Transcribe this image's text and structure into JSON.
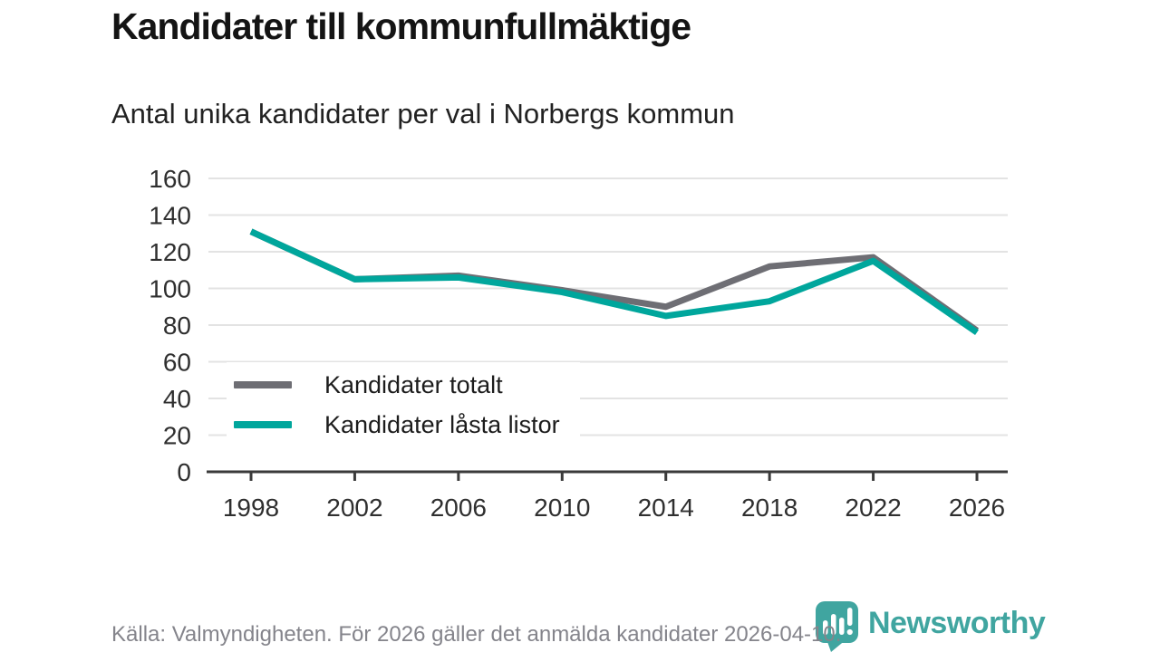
{
  "page": {
    "title": "Kandidater till kommunfullmäktige",
    "subtitle": "Antal unika kandidater per val i Norbergs kommun"
  },
  "footer": {
    "source_note": "Källa: Valmyndigheten. För 2026 gäller det anmälda kandidater 2026-04-10."
  },
  "logo": {
    "icon": "newsworthy-bubble-barchart-icon",
    "text": "Newsworthy"
  },
  "colors": {
    "accent-teal": "#00a69c",
    "line-gray": "#6e6e74",
    "logo-teal": "#40a5a0",
    "grid": "#e3e3e3",
    "axis": "#3a3a3a",
    "tick-label": "#2f2f2f",
    "footer-text": "#84848b",
    "title-text": "#141414"
  },
  "chart_data": {
    "type": "line",
    "title": "Kandidater till kommunfullmäktige",
    "subtitle": "Antal unika kandidater per val i Norbergs kommun",
    "x": [
      1998,
      2002,
      2006,
      2010,
      2014,
      2018,
      2022,
      2026
    ],
    "series": [
      {
        "name": "Kandidater totalt",
        "color": "#6e6e74",
        "values": [
          131,
          105,
          107,
          99,
          90,
          112,
          117,
          77
        ]
      },
      {
        "name": "Kandidater låsta listor",
        "color": "#00a69c",
        "values": [
          131,
          105,
          106,
          98,
          85,
          93,
          115,
          76
        ]
      }
    ],
    "xlabel": "",
    "ylabel": "",
    "ylim": [
      0,
      160
    ],
    "ytick_step": 20,
    "grid": true,
    "legend_position": "inside bottom-left"
  }
}
